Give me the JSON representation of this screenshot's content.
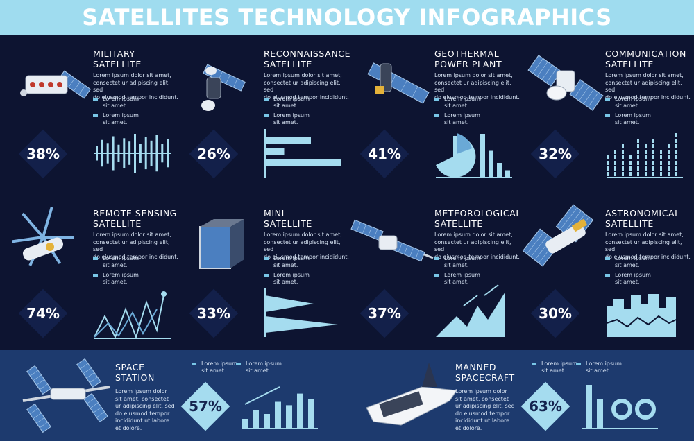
{
  "title": "SATELLITES TECHNOLOGY INFOGRAPHICS",
  "colors": {
    "header": "#9fdcef",
    "background": "#0d1431",
    "bottom_panel": "#1d3a6e",
    "accent": "#79c6e6",
    "light": "#a5dcef"
  },
  "lorem": {
    "desc": [
      "Lorem ipsum dolor sit amet,",
      "consectet ur adipiscing elit, sed",
      "do eiusmod tempor incididunt."
    ],
    "item": [
      "Lorem ipsum",
      "sit amet."
    ]
  },
  "satellites": [
    {
      "label": [
        "MILITARY",
        "SATELLITE"
      ],
      "percent": "38%",
      "icon": "military-satellite-icon",
      "chart": "bars"
    },
    {
      "label": [
        "RECONNAISSANCE",
        "SATELLITE"
      ],
      "percent": "26%",
      "icon": "reconnaissance-satellite-icon",
      "chart": "hbars"
    },
    {
      "label": [
        "GEOTHERMAL",
        "POWER PLANT"
      ],
      "percent": "41%",
      "icon": "geothermal-satellite-icon",
      "chart": "pie-bars"
    },
    {
      "label": [
        "COMMUNICATION",
        "SATELLITE"
      ],
      "percent": "32%",
      "icon": "communication-satellite-icon",
      "chart": "dotted-bars"
    },
    {
      "label": [
        "REMOTE SENSING",
        "SATELLITE"
      ],
      "percent": "74%",
      "icon": "remote-sensing-satellite-icon",
      "chart": "zigzag"
    },
    {
      "label": [
        "MINI",
        "SATELLITE"
      ],
      "percent": "33%",
      "icon": "mini-satellite-icon",
      "chart": "triangles"
    },
    {
      "label": [
        "METEOROLOGICAL",
        "SATELLITE"
      ],
      "percent": "37%",
      "icon": "meteorological-satellite-icon",
      "chart": "mountains"
    },
    {
      "label": [
        "ASTRONOMICAL",
        "SATELLITE"
      ],
      "percent": "30%",
      "icon": "astronomical-satellite-icon",
      "chart": "area-step"
    }
  ],
  "bottom": [
    {
      "label": [
        "SPACE",
        "STATION"
      ],
      "percent": "57%",
      "icon": "space-station-icon",
      "desc": [
        "Lorem ipsum dolor",
        "sit amet, consectet",
        "ur adipiscing elit, sed",
        "do eiusmod tempor",
        "incididunt ut labore",
        "et dolore."
      ]
    },
    {
      "label": [
        "MANNED",
        "SPACECRAFT"
      ],
      "percent": "63%",
      "icon": "spacecraft-icon",
      "desc": [
        "Lorem ipsum dolor",
        "sit amet, consectet",
        "ur adipiscing elit, sed",
        "do eiusmod tempor",
        "incididunt ut labore",
        "et dolore."
      ]
    }
  ],
  "chart_values": {
    "bars": [
      30,
      55,
      42,
      70,
      35,
      62,
      48,
      80,
      40,
      66,
      52,
      75,
      38,
      58
    ],
    "hbars": [
      60,
      25,
      100
    ],
    "pie_bars": [
      90,
      55,
      30,
      15
    ],
    "dotted_bars": [
      45,
      60,
      80,
      55,
      90,
      70,
      85,
      60,
      75,
      95
    ],
    "station_bars": [
      20,
      38,
      30,
      55,
      48,
      72,
      60
    ],
    "craft_bars": [
      90,
      60
    ]
  }
}
